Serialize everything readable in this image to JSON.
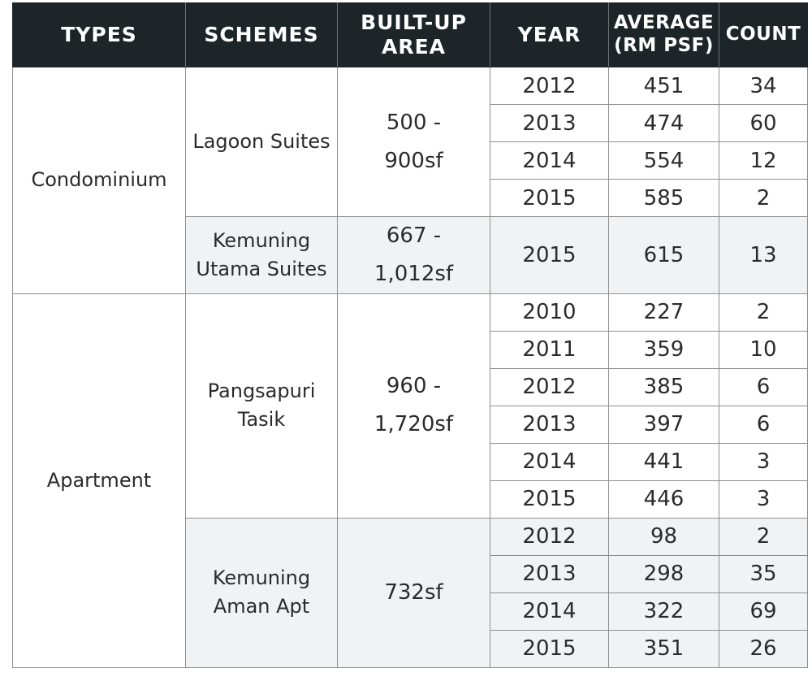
{
  "table": {
    "headers": {
      "types": [
        "TYPES"
      ],
      "schemes": [
        "SCHEMES"
      ],
      "built_up_area": [
        "BUILT-UP",
        "AREA"
      ],
      "year": [
        "YEAR"
      ],
      "average": [
        "AVERAGE",
        "(RM PSF)"
      ],
      "count": [
        "COUNT"
      ]
    },
    "types": [
      {
        "type": "Condominium",
        "schemes": [
          {
            "scheme": [
              "Lagoon Suites"
            ],
            "area": [
              "500 -",
              "900sf"
            ],
            "shaded": false,
            "rows": [
              {
                "year": "2012",
                "avg": "451",
                "count": "34"
              },
              {
                "year": "2013",
                "avg": "474",
                "count": "60"
              },
              {
                "year": "2014",
                "avg": "554",
                "count": "12"
              },
              {
                "year": "2015",
                "avg": "585",
                "count": "2"
              }
            ]
          },
          {
            "scheme": [
              "Kemuning",
              "Utama Suites"
            ],
            "area": [
              "667 -",
              "1,012sf"
            ],
            "shaded": true,
            "rows": [
              {
                "year": "2015",
                "avg": "615",
                "count": "13"
              }
            ]
          }
        ]
      },
      {
        "type": "Apartment",
        "schemes": [
          {
            "scheme": [
              "Pangsapuri",
              "Tasik"
            ],
            "area": [
              "960 -",
              "1,720sf"
            ],
            "shaded": false,
            "rows": [
              {
                "year": "2010",
                "avg": "227",
                "count": "2"
              },
              {
                "year": "2011",
                "avg": "359",
                "count": "10"
              },
              {
                "year": "2012",
                "avg": "385",
                "count": "6"
              },
              {
                "year": "2013",
                "avg": "397",
                "count": "6"
              },
              {
                "year": "2014",
                "avg": "441",
                "count": "3"
              },
              {
                "year": "2015",
                "avg": "446",
                "count": "3"
              }
            ]
          },
          {
            "scheme": [
              "Kemuning",
              "Aman Apt"
            ],
            "area": [
              "732sf"
            ],
            "shaded": true,
            "rows": [
              {
                "year": "2012",
                "avg": "98",
                "count": "2"
              },
              {
                "year": "2013",
                "avg": "298",
                "count": "35"
              },
              {
                "year": "2014",
                "avg": "322",
                "count": "69"
              },
              {
                "year": "2015",
                "avg": "351",
                "count": "26"
              }
            ]
          }
        ]
      }
    ]
  }
}
